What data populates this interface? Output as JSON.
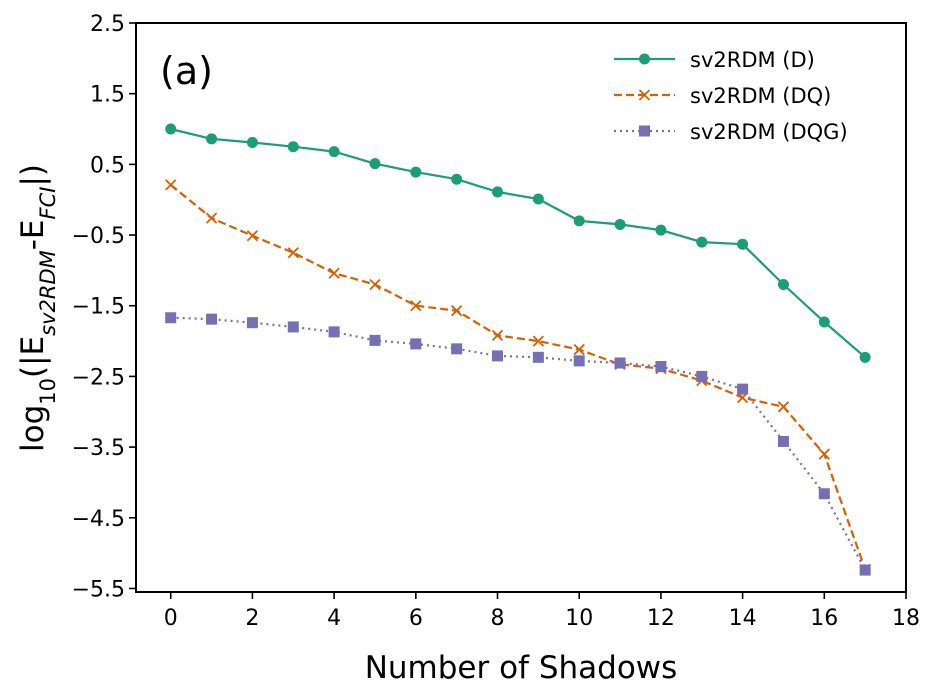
{
  "chart_data": {
    "type": "line",
    "panel_label": "(a)",
    "xlabel": "Number of Shadows",
    "ylabel": {
      "prefix": "log",
      "prefix_sub": "10",
      "open": "(|E",
      "sub1": "sv2RDM",
      "mid": "-E",
      "sub2": "FCI",
      "close": "|)"
    },
    "xlim": [
      -0.85,
      18
    ],
    "ylim": [
      -5.55,
      2.5
    ],
    "xticks": [
      0,
      2,
      4,
      6,
      8,
      10,
      12,
      14,
      16,
      18
    ],
    "xtick_labels": [
      "0",
      "2",
      "4",
      "6",
      "8",
      "10",
      "12",
      "14",
      "16",
      "18"
    ],
    "yticks": [
      2.5,
      1.5,
      0.5,
      -0.5,
      -1.5,
      -2.5,
      -3.5,
      -4.5,
      -5.5
    ],
    "ytick_labels": [
      "2.5",
      "1.5",
      "0.5",
      "−0.5",
      "−1.5",
      "−2.5",
      "−3.5",
      "−4.5",
      "−5.5"
    ],
    "legend_position": "top-right",
    "x": [
      0,
      1,
      2,
      3,
      4,
      5,
      6,
      7,
      8,
      9,
      10,
      11,
      12,
      13,
      14,
      15,
      16,
      17
    ],
    "series": [
      {
        "name": "sv2RDM (D)",
        "color": "#1b9e77",
        "marker": "circle",
        "linestyle": "solid",
        "values": [
          1.0,
          0.86,
          0.81,
          0.75,
          0.68,
          0.51,
          0.39,
          0.29,
          0.11,
          0.01,
          -0.3,
          -0.35,
          -0.43,
          -0.6,
          -0.63,
          -1.2,
          -1.73,
          -2.23
        ]
      },
      {
        "name": "sv2RDM (DQ)",
        "color": "#d95f02",
        "marker": "x",
        "linestyle": "dashed",
        "values": [
          0.21,
          -0.26,
          -0.51,
          -0.75,
          -1.04,
          -1.2,
          -1.5,
          -1.57,
          -1.92,
          -2.0,
          -2.12,
          -2.33,
          -2.39,
          -2.56,
          -2.8,
          -2.93,
          -3.6,
          -5.23
        ]
      },
      {
        "name": "sv2RDM (DQG)",
        "color": "#7570b3",
        "marker": "square",
        "linestyle": "dotted",
        "values": [
          -1.67,
          -1.69,
          -1.74,
          -1.8,
          -1.87,
          -1.99,
          -2.04,
          -2.11,
          -2.21,
          -2.23,
          -2.28,
          -2.31,
          -2.36,
          -2.5,
          -2.68,
          -3.42,
          -4.16,
          -5.24
        ]
      }
    ]
  }
}
